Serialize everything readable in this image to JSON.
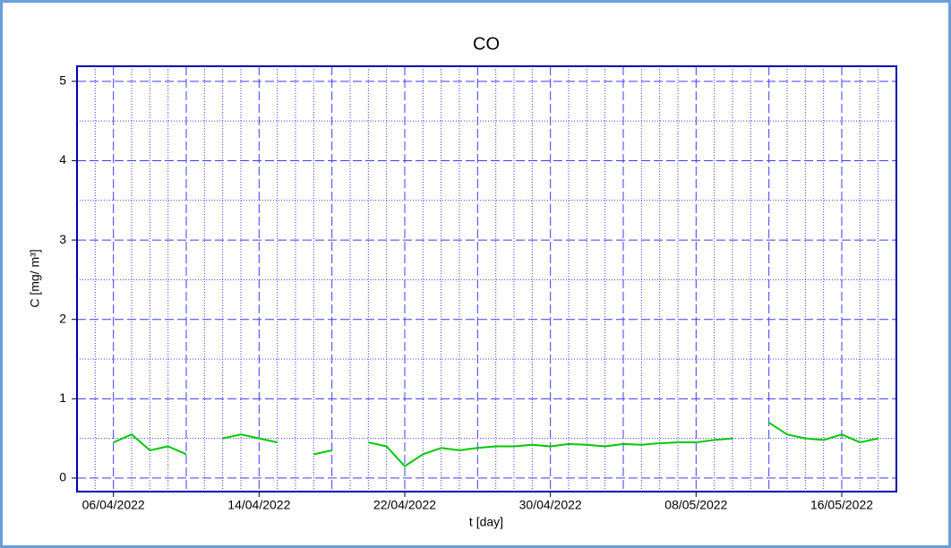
{
  "chart_data": {
    "type": "line",
    "title": "CO",
    "x_label": "t [day]",
    "y_label": "C [mg/ m³]",
    "x": [
      "06/04/2022",
      "07/04/2022",
      "08/04/2022",
      "09/04/2022",
      "10/04/2022",
      "11/04/2022",
      "12/04/2022",
      "13/04/2022",
      "14/04/2022",
      "15/04/2022",
      "16/04/2022",
      "17/04/2022",
      "18/04/2022",
      "19/04/2022",
      "20/04/2022",
      "21/04/2022",
      "22/04/2022",
      "23/04/2022",
      "24/04/2022",
      "25/04/2022",
      "26/04/2022",
      "27/04/2022",
      "28/04/2022",
      "29/04/2022",
      "30/04/2022",
      "01/05/2022",
      "02/05/2022",
      "03/05/2022",
      "04/05/2022",
      "05/05/2022",
      "06/05/2022",
      "07/05/2022",
      "08/05/2022",
      "09/05/2022",
      "10/05/2022",
      "11/05/2022",
      "12/05/2022",
      "13/05/2022",
      "14/05/2022",
      "15/05/2022",
      "16/05/2022",
      "17/05/2022",
      "18/05/2022"
    ],
    "series": [
      {
        "name": "CO",
        "color": "#00c800",
        "values": [
          0.45,
          0.55,
          0.35,
          0.4,
          0.3,
          null,
          0.5,
          0.55,
          0.5,
          0.45,
          null,
          0.3,
          0.35,
          null,
          0.45,
          0.4,
          0.15,
          0.3,
          0.38,
          0.35,
          0.38,
          0.4,
          0.4,
          0.42,
          0.4,
          0.43,
          0.42,
          0.4,
          0.43,
          0.42,
          0.44,
          0.45,
          0.45,
          0.48,
          0.5,
          null,
          0.7,
          0.55,
          0.5,
          0.48,
          0.55,
          0.45,
          0.5
        ]
      }
    ],
    "xlim": [
      "04/04/2022",
      "19/05/2022"
    ],
    "xticks": [
      "06/04/2022",
      "14/04/2022",
      "22/04/2022",
      "30/04/2022",
      "08/05/2022",
      "16/05/2022"
    ],
    "ylim": [
      -0.17,
      5.19
    ],
    "yticks": [
      0,
      1,
      2,
      3,
      4,
      5
    ],
    "grid": true
  }
}
